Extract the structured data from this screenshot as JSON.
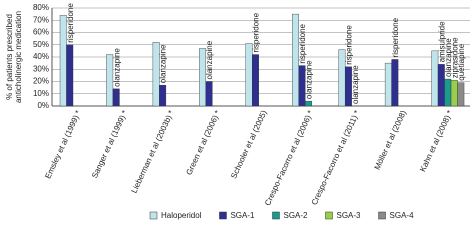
{
  "chart_data": {
    "type": "bar",
    "y_label": [
      "% of patients prescribed",
      "anticholinergic medication"
    ],
    "categories": [
      "Emsley et al (1999) *",
      "Sanger et al (1999) *",
      "Lieberman et al (2003b) *",
      "Green et al (2006) *",
      "Schooler et al (2005)",
      "Crespo-Facorro et al (2006) *",
      "Crespo-Facorro et al (2011) *",
      "Möller et al (2008)",
      "Kahn et al (2008) *"
    ],
    "series": [
      {
        "name": "Haloperidol",
        "color": "#bfe4ec",
        "values": [
          74,
          42,
          52,
          47,
          51,
          75,
          46,
          35,
          45
        ]
      },
      {
        "name": "SGA-1",
        "color": "#2e2f8f",
        "values": [
          50,
          14,
          17,
          20,
          42,
          33,
          32,
          38,
          34
        ]
      },
      {
        "name": "SGA-2",
        "color": "#1b9a8f",
        "values": [
          null,
          null,
          null,
          null,
          null,
          4,
          null,
          null,
          22
        ]
      },
      {
        "name": "SGA-3",
        "color": "#9acd4a",
        "values": [
          null,
          null,
          null,
          null,
          null,
          null,
          null,
          null,
          21
        ]
      },
      {
        "name": "SGA-4",
        "color": "#8a8a8a",
        "values": [
          null,
          null,
          null,
          null,
          null,
          null,
          null,
          null,
          19
        ]
      }
    ],
    "annotations": [
      [
        "risperidone"
      ],
      [
        "olanzapine"
      ],
      [
        "olanzapine"
      ],
      [
        "olanzapine"
      ],
      [
        "risperidone"
      ],
      [
        "risperidone",
        "olanzapine"
      ],
      [
        "risperidone",
        "olanzapine"
      ],
      [
        "risperidone"
      ],
      [
        "amisulpride",
        "olanzapine",
        "ziprasidone",
        "quetiapine"
      ]
    ],
    "ylim": [
      0,
      80
    ],
    "yticks": [
      {
        "value": 0,
        "label": "0%"
      },
      {
        "value": 10,
        "label": "10%"
      },
      {
        "value": 20,
        "label": "20%"
      },
      {
        "value": 30,
        "label": "30%"
      },
      {
        "value": 40,
        "label": "40%"
      },
      {
        "value": 50,
        "label": "50%"
      },
      {
        "value": 60,
        "label": "60%"
      },
      {
        "value": 70,
        "label": "70%"
      },
      {
        "value": 80,
        "label": "80%"
      }
    ],
    "grid": true
  }
}
